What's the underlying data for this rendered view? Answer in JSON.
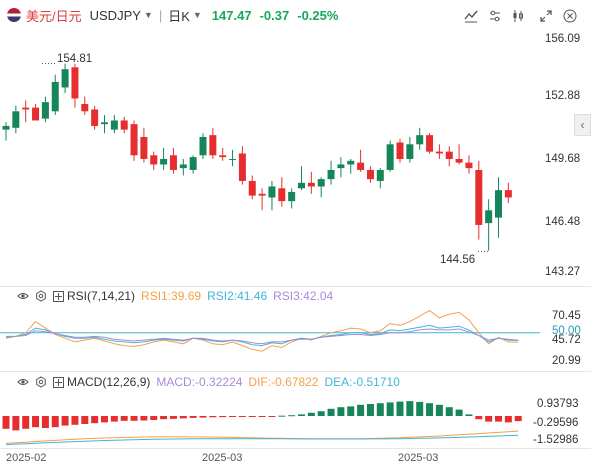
{
  "toolbar": {
    "pair_cn": "美元/日元",
    "symbol": "USDJPY",
    "interval": "日K",
    "last_price": "147.47",
    "change": "-0.37",
    "change_pct": "-0.25%",
    "icons": [
      "indicator-icon",
      "settings-icon",
      "compare-icon",
      "fullscreen-icon",
      "close-icon"
    ]
  },
  "main_chart": {
    "y_labels": [
      "156.09",
      "152.88",
      "149.68",
      "146.48",
      "143.27"
    ],
    "high_label": "154.81",
    "low_label": "144.56"
  },
  "rsi": {
    "title": "RSI(7,14,21)",
    "rsi1": "RSI1:39.69",
    "rsi2": "RSI2:41.46",
    "rsi3": "RSI3:42.04",
    "y_labels": [
      "70.45",
      "50.00",
      "45.72",
      "20.99"
    ]
  },
  "macd": {
    "title": "MACD(12,26,9)",
    "macd": "MACD:-0.32224",
    "dif": "DIF:-0.67822",
    "dea": "DEA:-0.51710",
    "y_labels": [
      "0.93793",
      "-0.29596",
      "-1.52986"
    ]
  },
  "x_labels": [
    "2025-02",
    "2025-03",
    "2025-03"
  ],
  "colors": {
    "up": "#16865a",
    "down": "#e62e2e",
    "rsi1": "#f5a04a",
    "rsi2": "#3fb7d6",
    "rsi3": "#a98bd8",
    "macd_dif": "#f5a04a",
    "macd_dea": "#3fb7d6"
  },
  "chart_data": {
    "type": "candlestick",
    "ohlc": [
      [
        151.2,
        151.6,
        150.6,
        151.4
      ],
      [
        151.3,
        152.5,
        151.0,
        152.2
      ],
      [
        152.4,
        152.8,
        151.6,
        152.3
      ],
      [
        152.4,
        152.6,
        151.8,
        151.7
      ],
      [
        151.8,
        153.0,
        151.6,
        152.7
      ],
      [
        152.2,
        154.2,
        152.0,
        153.8
      ],
      [
        153.5,
        154.8,
        153.2,
        154.5
      ],
      [
        154.6,
        154.8,
        152.4,
        152.9
      ],
      [
        152.6,
        153.0,
        152.0,
        152.2
      ],
      [
        152.3,
        152.5,
        151.2,
        151.4
      ],
      [
        151.5,
        152.0,
        151.0,
        151.6
      ],
      [
        151.2,
        152.0,
        151.0,
        151.7
      ],
      [
        151.7,
        151.9,
        151.0,
        151.2
      ],
      [
        151.5,
        151.7,
        149.5,
        149.8
      ],
      [
        150.8,
        151.3,
        149.4,
        149.6
      ],
      [
        149.8,
        150.0,
        149.0,
        149.3
      ],
      [
        149.3,
        150.2,
        149.0,
        149.6
      ],
      [
        149.8,
        150.2,
        148.8,
        149.0
      ],
      [
        149.1,
        149.6,
        148.7,
        149.3
      ],
      [
        149.0,
        149.8,
        148.8,
        149.7
      ],
      [
        149.8,
        151.0,
        149.6,
        150.8
      ],
      [
        150.9,
        151.3,
        149.6,
        149.8
      ],
      [
        149.8,
        150.2,
        149.5,
        149.7
      ],
      [
        149.6,
        150.1,
        149.2,
        149.6
      ],
      [
        149.9,
        150.3,
        148.2,
        148.4
      ],
      [
        148.4,
        148.7,
        147.4,
        147.6
      ],
      [
        147.7,
        148.0,
        146.8,
        147.6
      ],
      [
        147.5,
        148.4,
        146.8,
        148.1
      ],
      [
        148.0,
        148.6,
        147.0,
        147.3
      ],
      [
        147.3,
        148.0,
        146.9,
        147.8
      ],
      [
        148.0,
        149.2,
        147.9,
        148.3
      ],
      [
        148.3,
        148.9,
        147.7,
        148.1
      ],
      [
        148.1,
        148.6,
        147.5,
        148.5
      ],
      [
        148.5,
        149.5,
        148.2,
        149.0
      ],
      [
        149.1,
        149.7,
        148.6,
        149.3
      ],
      [
        149.3,
        149.6,
        148.8,
        149.5
      ],
      [
        149.4,
        150.1,
        148.9,
        149.0
      ],
      [
        149.0,
        149.2,
        148.3,
        148.5
      ],
      [
        148.4,
        149.1,
        148.0,
        149.0
      ],
      [
        149.0,
        150.6,
        148.9,
        150.4
      ],
      [
        150.5,
        150.7,
        149.4,
        149.6
      ],
      [
        149.6,
        150.8,
        149.4,
        150.4
      ],
      [
        150.4,
        151.3,
        150.1,
        150.9
      ],
      [
        150.9,
        151.0,
        149.9,
        150.0
      ],
      [
        150.0,
        150.4,
        149.6,
        149.9
      ],
      [
        150.0,
        150.3,
        149.2,
        149.6
      ],
      [
        149.6,
        150.4,
        149.3,
        149.4
      ],
      [
        149.4,
        149.8,
        148.8,
        149.1
      ],
      [
        149.0,
        149.5,
        145.2,
        146.0
      ],
      [
        146.1,
        147.4,
        144.6,
        146.8
      ],
      [
        146.4,
        148.6,
        145.3,
        147.9
      ],
      [
        147.9,
        148.3,
        147.2,
        147.5
      ]
    ],
    "ylim": [
      143.27,
      156.09
    ]
  }
}
